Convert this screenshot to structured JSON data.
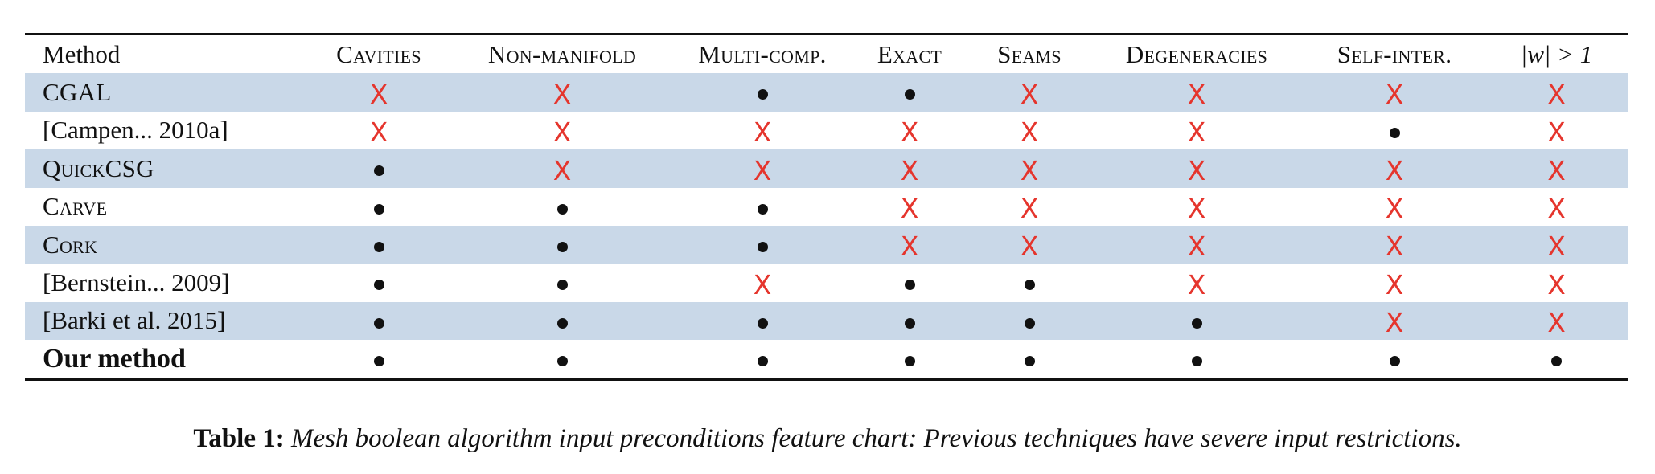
{
  "table": {
    "columns": [
      {
        "label": "Method",
        "style": "plain"
      },
      {
        "label": "Cavities",
        "style": "smallcaps"
      },
      {
        "label": "Non-manifold",
        "style": "smallcaps"
      },
      {
        "label": "Multi-comp.",
        "style": "smallcaps"
      },
      {
        "label": "Exact",
        "style": "smallcaps"
      },
      {
        "label": "Seams",
        "style": "smallcaps"
      },
      {
        "label": "Degeneracies",
        "style": "smallcaps"
      },
      {
        "label": "Self-inter.",
        "style": "smallcaps"
      },
      {
        "label": "|w| > 1",
        "style": "math"
      }
    ],
    "legend_symbols": {
      "supported": "●",
      "unsupported": "X"
    },
    "rows": [
      {
        "method": "CGAL",
        "method_style": "smallcaps",
        "shaded": true,
        "cells": [
          "X",
          "X",
          "●",
          "●",
          "X",
          "X",
          "X",
          "X"
        ]
      },
      {
        "method": "[Campen... 2010a]",
        "method_style": "plain",
        "shaded": false,
        "cells": [
          "X",
          "X",
          "X",
          "X",
          "X",
          "X",
          "●",
          "X"
        ]
      },
      {
        "method": "QuickCSG",
        "method_style": "smallcaps",
        "shaded": true,
        "cells": [
          "●",
          "X",
          "X",
          "X",
          "X",
          "X",
          "X",
          "X"
        ]
      },
      {
        "method": "Carve",
        "method_style": "smallcaps",
        "shaded": false,
        "cells": [
          "●",
          "●",
          "●",
          "X",
          "X",
          "X",
          "X",
          "X"
        ]
      },
      {
        "method": "Cork",
        "method_style": "smallcaps",
        "shaded": true,
        "cells": [
          "●",
          "●",
          "●",
          "X",
          "X",
          "X",
          "X",
          "X"
        ]
      },
      {
        "method": "[Bernstein... 2009]",
        "method_style": "plain",
        "shaded": false,
        "cells": [
          "●",
          "●",
          "X",
          "●",
          "●",
          "X",
          "X",
          "X"
        ]
      },
      {
        "method": "[Barki et al. 2015]",
        "method_style": "plain",
        "shaded": true,
        "cells": [
          "●",
          "●",
          "●",
          "●",
          "●",
          "●",
          "X",
          "X"
        ]
      },
      {
        "method": "Our method",
        "method_style": "bold",
        "shaded": false,
        "cells": [
          "●",
          "●",
          "●",
          "●",
          "●",
          "●",
          "●",
          "●"
        ]
      }
    ]
  },
  "caption": {
    "label": "Table 1:",
    "text": "Mesh boolean algorithm input preconditions feature chart: Previous techniques have severe input restrictions."
  }
}
